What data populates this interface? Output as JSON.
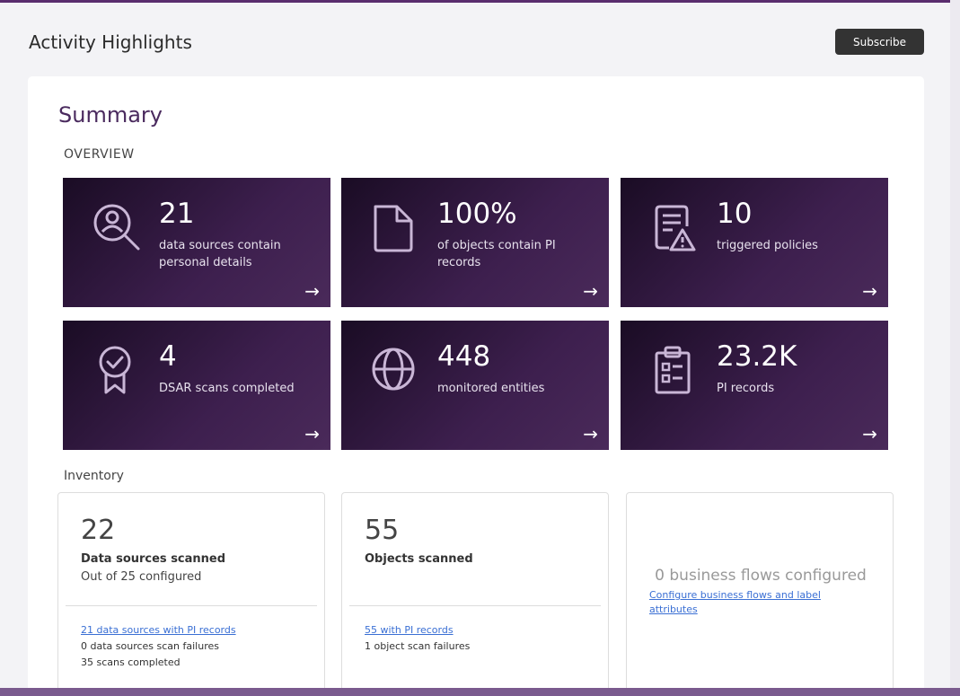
{
  "header": {
    "title": "Activity Highlights",
    "subscribe_label": "Subscribe"
  },
  "summary": {
    "title": "Summary",
    "overview_label": "OVERVIEW",
    "tiles": [
      {
        "value": "21",
        "description": "data sources contain personal details",
        "icon": "search-person-icon"
      },
      {
        "value": "100%",
        "description": "of objects contain PI records",
        "icon": "document-icon"
      },
      {
        "value": "10",
        "description": "triggered policies",
        "icon": "policy-alert-icon"
      },
      {
        "value": "4",
        "description": "DSAR scans completed",
        "icon": "badge-check-icon"
      },
      {
        "value": "448",
        "description": "monitored entities",
        "icon": "globe-icon"
      },
      {
        "value": "23.2K",
        "description": "PI records",
        "icon": "clipboard-list-icon"
      }
    ],
    "arrow": "→"
  },
  "inventory": {
    "label": "Inventory",
    "data_sources": {
      "count": "22",
      "label": "Data sources scanned",
      "sub": "Out of 25 configured",
      "link": "21 data sources with PI records",
      "failures": "0 data sources scan failures",
      "scans": "35 scans completed"
    },
    "objects": {
      "count": "55",
      "label": "Objects scanned",
      "link": "55 with PI records",
      "failures": "1 object scan failures"
    },
    "business_flows": {
      "title": "0 business flows configured",
      "link": "Configure business flows and label attributes"
    }
  },
  "colors": {
    "tile_bg": "#3d1f4e",
    "accent": "#5a2d6e",
    "link": "#3a6fd4"
  }
}
